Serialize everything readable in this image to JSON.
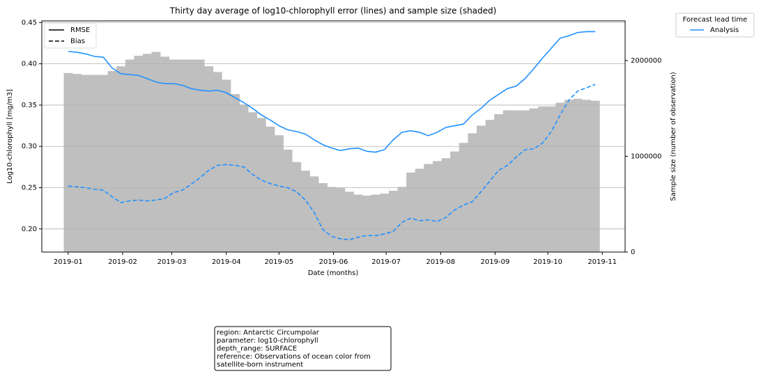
{
  "chart_data": {
    "type": "line",
    "title": "Thirty day average of log10-chlorophyll error (lines) and sample size (shaded)",
    "x_label": "Date (months)",
    "y_label": "Log10-chlorophyll [mg/m3]",
    "y2_label": "Sample size (number of observation)",
    "x": [
      0,
      5,
      10,
      15,
      20,
      25,
      30,
      35,
      40,
      45,
      50,
      55,
      60,
      65,
      70,
      75,
      80,
      85,
      90,
      95,
      100,
      105,
      110,
      115,
      120,
      125,
      130,
      135,
      140,
      145,
      150,
      155,
      160,
      165,
      170,
      175,
      180,
      185,
      190,
      195,
      200,
      205,
      210,
      215,
      220,
      225,
      230,
      235,
      240,
      245,
      250,
      255,
      260,
      265,
      270,
      275,
      280,
      285,
      290,
      295,
      300
    ],
    "xlim": [
      -15,
      317
    ],
    "xticks": [
      {
        "value": 0,
        "label": "2019-01"
      },
      {
        "value": 31,
        "label": "2019-02"
      },
      {
        "value": 59,
        "label": "2019-03"
      },
      {
        "value": 90,
        "label": "2019-04"
      },
      {
        "value": 120,
        "label": "2019-05"
      },
      {
        "value": 151,
        "label": "2019-06"
      },
      {
        "value": 181,
        "label": "2019-07"
      },
      {
        "value": 212,
        "label": "2019-08"
      },
      {
        "value": 243,
        "label": "2019-09"
      },
      {
        "value": 273,
        "label": "2019-10"
      },
      {
        "value": 304,
        "label": "2019-11"
      }
    ],
    "ylim": [
      0.172,
      0.452
    ],
    "yticks": [
      {
        "value": 0.2,
        "label": "0.20"
      },
      0.25,
      {
        "value": 0.3,
        "label": "0.30"
      },
      0.35,
      {
        "value": 0.4,
        "label": "0.40"
      },
      0.45
    ],
    "y2lim": [
      0,
      2414000
    ],
    "y2ticks": [
      0,
      1000000,
      2000000
    ],
    "grid": true,
    "series": [
      {
        "name": "RMSE",
        "color": "#1e90ff",
        "style": "solid",
        "values": [
          0.415,
          0.414,
          0.412,
          0.409,
          0.408,
          0.395,
          0.388,
          0.387,
          0.386,
          0.382,
          0.378,
          0.376,
          0.376,
          0.374,
          0.37,
          0.368,
          0.367,
          0.368,
          0.365,
          0.359,
          0.353,
          0.346,
          0.338,
          0.332,
          0.325,
          0.32,
          0.318,
          0.315,
          0.308,
          0.302,
          0.298,
          0.295,
          0.297,
          0.298,
          0.294,
          0.293,
          0.296,
          0.308,
          0.317,
          0.319,
          0.317,
          0.313,
          0.317,
          0.323,
          0.325,
          0.327,
          0.338,
          0.346,
          0.356,
          0.363,
          0.37,
          0.373,
          0.382,
          0.394,
          0.407,
          0.419,
          0.431,
          0.434,
          0.438,
          0.439,
          0.439
        ]
      },
      {
        "name": "Bias",
        "color": "#1e90ff",
        "style": "dashed",
        "values": [
          0.252,
          0.251,
          0.25,
          0.248,
          0.247,
          0.239,
          0.232,
          0.234,
          0.235,
          0.234,
          0.235,
          0.237,
          0.244,
          0.247,
          0.254,
          0.262,
          0.271,
          0.277,
          0.278,
          0.277,
          0.275,
          0.266,
          0.259,
          0.255,
          0.252,
          0.25,
          0.245,
          0.235,
          0.22,
          0.199,
          0.191,
          0.188,
          0.187,
          0.19,
          0.192,
          0.192,
          0.194,
          0.197,
          0.208,
          0.213,
          0.21,
          0.211,
          0.209,
          0.214,
          0.223,
          0.229,
          0.233,
          0.245,
          0.258,
          0.271,
          0.277,
          0.287,
          0.296,
          0.297,
          0.304,
          0.318,
          0.338,
          0.356,
          0.367,
          0.371,
          0.375
        ]
      }
    ],
    "sample_size": {
      "axis": "y2",
      "color": "#bfbfbf",
      "values": [
        1870000,
        1860000,
        1850000,
        1850000,
        1850000,
        1890000,
        1940000,
        2010000,
        2050000,
        2070000,
        2090000,
        2040000,
        2010000,
        2010000,
        2010000,
        2010000,
        1940000,
        1880000,
        1800000,
        1650000,
        1540000,
        1460000,
        1400000,
        1310000,
        1220000,
        1070000,
        940000,
        850000,
        790000,
        720000,
        680000,
        670000,
        630000,
        600000,
        590000,
        600000,
        610000,
        640000,
        680000,
        830000,
        870000,
        920000,
        950000,
        980000,
        1050000,
        1140000,
        1240000,
        1320000,
        1380000,
        1440000,
        1480000,
        1480000,
        1480000,
        1500000,
        1520000,
        1520000,
        1560000,
        1590000,
        1600000,
        1590000,
        1580000
      ]
    },
    "legend": {
      "loc": "upper left",
      "color": "#000000"
    },
    "lead_time_legend": {
      "title": "Forecast lead time",
      "entries": [
        "Analysis"
      ],
      "color": "#1e90ff",
      "loc": "outside upper right"
    },
    "annotation": [
      "region: Antarctic Circumpolar",
      "parameter: log10-chlorophyll",
      "depth_range: SURFACE",
      "reference: Observations of ocean color from",
      "satellite-born instrument"
    ]
  }
}
